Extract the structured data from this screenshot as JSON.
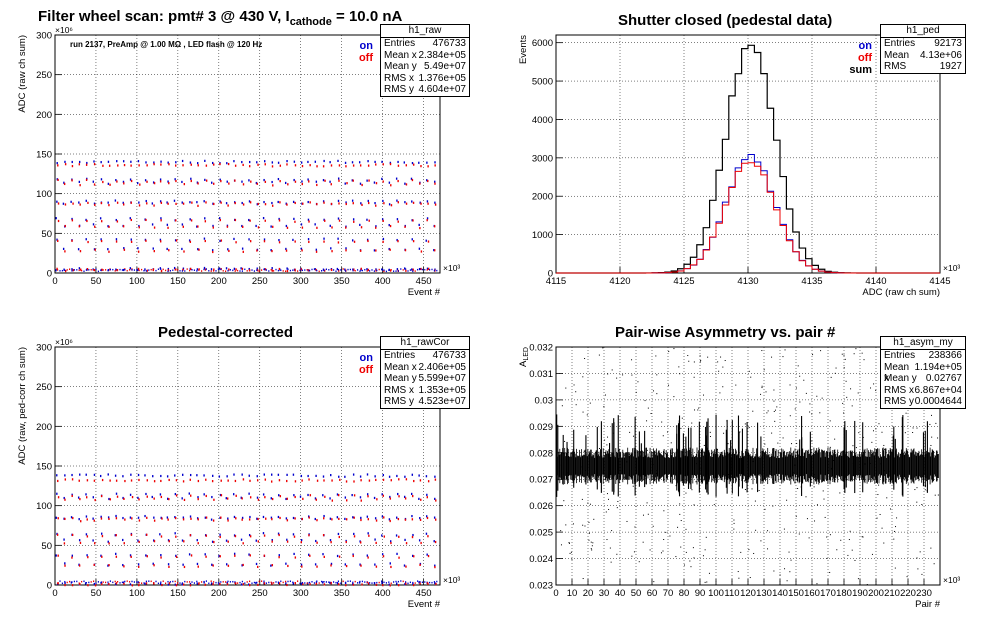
{
  "panels": [
    {
      "title_prefix": "Filter wheel scan: pmt#   3 @   430 V, I",
      "title_sub": "cathode",
      "title_suffix": "  = 10.0 nA",
      "run_note": "run 2137, PreAmp @ 1.00 MΩ , LED flash @  120 Hz",
      "legend": [
        "on",
        "off"
      ],
      "stats": {
        "name": "h1_raw",
        "rows": [
          [
            "Entries",
            "476733"
          ],
          [
            "Mean x",
            "2.384e+05"
          ],
          [
            "Mean y",
            "5.49e+07"
          ],
          [
            "RMS x",
            "1.376e+05"
          ],
          [
            "RMS y",
            "4.604e+07"
          ]
        ]
      }
    },
    {
      "title": "Shutter closed (pedestal data)",
      "legend": [
        "on",
        "off",
        "sum"
      ],
      "stats": {
        "name": "h1_ped",
        "rows": [
          [
            "Entries",
            "92173"
          ],
          [
            "Mean",
            "4.13e+06"
          ],
          [
            "RMS",
            "1927"
          ]
        ]
      }
    },
    {
      "title": "Pedestal-corrected",
      "legend": [
        "on",
        "off"
      ],
      "stats": {
        "name": "h1_rawCor",
        "rows": [
          [
            "Entries",
            "476733"
          ],
          [
            "Mean x",
            "2.406e+05"
          ],
          [
            "Mean y",
            "5.599e+07"
          ],
          [
            "RMS x",
            "1.353e+05"
          ],
          [
            "RMS y",
            "4.523e+07"
          ]
        ]
      }
    },
    {
      "title": "Pair-wise Asymmetry vs. pair #",
      "stats": {
        "name": "h1_asym_my",
        "rows": [
          [
            "Entries",
            "238366"
          ],
          [
            "Mean x",
            "1.194e+05"
          ],
          [
            "Mean y",
            "0.02767"
          ],
          [
            "RMS x",
            "6.867e+04"
          ],
          [
            "RMS y",
            "0.0004644"
          ]
        ]
      }
    }
  ],
  "colors": {
    "on": "#0000cc",
    "off": "#ee0000",
    "sum": "#000000",
    "grid": "#000000"
  },
  "chart_data": [
    {
      "type": "scatter",
      "title": "Filter wheel scan: pmt#   3 @   430 V, I cathode  = 10.0 nA",
      "xlabel": "Event #",
      "ylabel": "ADC (raw ch sum)",
      "x_exponent": "×10³",
      "y_exponent": "×10⁶",
      "xlim": [
        0,
        470
      ],
      "ylim": [
        0,
        300
      ],
      "xticks": [
        "0",
        "50",
        "100",
        "150",
        "200",
        "250",
        "300",
        "350",
        "400",
        "450"
      ],
      "yticks": [
        "0",
        "50",
        "100",
        "150",
        "200",
        "250",
        "300"
      ],
      "series": [
        {
          "name": "on",
          "levels": [
            5,
            30,
            42,
            60,
            68,
            88,
            90,
            114,
            118,
            140
          ]
        },
        {
          "name": "off",
          "levels": [
            4,
            28,
            40,
            58,
            66,
            86,
            88,
            112,
            116,
            136
          ]
        }
      ]
    },
    {
      "type": "line",
      "title": "Shutter closed (pedestal data)",
      "xlabel": "ADC (raw ch sum)",
      "ylabel": "Events",
      "x_exponent": "×10³",
      "xlim": [
        4115,
        4145
      ],
      "ylim": [
        0,
        6200
      ],
      "xticks": [
        "4115",
        "4120",
        "4125",
        "4130",
        "4135",
        "4140",
        "4145"
      ],
      "yticks": [
        "0",
        "1000",
        "2000",
        "3000",
        "4000",
        "5000",
        "6000"
      ],
      "mean": 4130.2,
      "sigma": 1.93,
      "series": [
        {
          "name": "sum",
          "peak": 5950
        },
        {
          "name": "on",
          "peak": 3000
        },
        {
          "name": "off",
          "peak": 2950
        }
      ]
    },
    {
      "type": "scatter",
      "title": "Pedestal-corrected",
      "xlabel": "Event #",
      "ylabel": "ADC (raw, ped-corr ch sum)",
      "x_exponent": "×10³",
      "y_exponent": "×10⁶",
      "xlim": [
        0,
        470
      ],
      "ylim": [
        0,
        300
      ],
      "xticks": [
        "0",
        "50",
        "100",
        "150",
        "200",
        "250",
        "300",
        "350",
        "400",
        "450"
      ],
      "yticks": [
        "0",
        "50",
        "100",
        "150",
        "200",
        "250",
        "300"
      ],
      "series": [
        {
          "name": "on",
          "levels": [
            2,
            26,
            38,
            56,
            64,
            84,
            86,
            110,
            114,
            138
          ]
        },
        {
          "name": "off",
          "levels": [
            1,
            24,
            36,
            54,
            62,
            82,
            84,
            108,
            112,
            132
          ]
        }
      ]
    },
    {
      "type": "scatter",
      "title": "Pair-wise Asymmetry vs. pair #",
      "xlabel": "Pair #",
      "ylabel": "A_LED",
      "x_exponent": "×10³",
      "xlim": [
        0,
        240
      ],
      "ylim": [
        0.023,
        0.032
      ],
      "xticks": [
        "0",
        "10",
        "20",
        "30",
        "40",
        "50",
        "60",
        "70",
        "80",
        "90",
        "100",
        "110",
        "120",
        "130",
        "140",
        "150",
        "160",
        "170",
        "180",
        "190",
        "200",
        "210",
        "220",
        "230"
      ],
      "yticks": [
        "0.023",
        "0.024",
        "0.025",
        "0.026",
        "0.027",
        "0.028",
        "0.029",
        "0.03",
        "0.031",
        "0.032"
      ],
      "band_center": 0.0275,
      "band_halfwidth": 0.0005
    }
  ]
}
